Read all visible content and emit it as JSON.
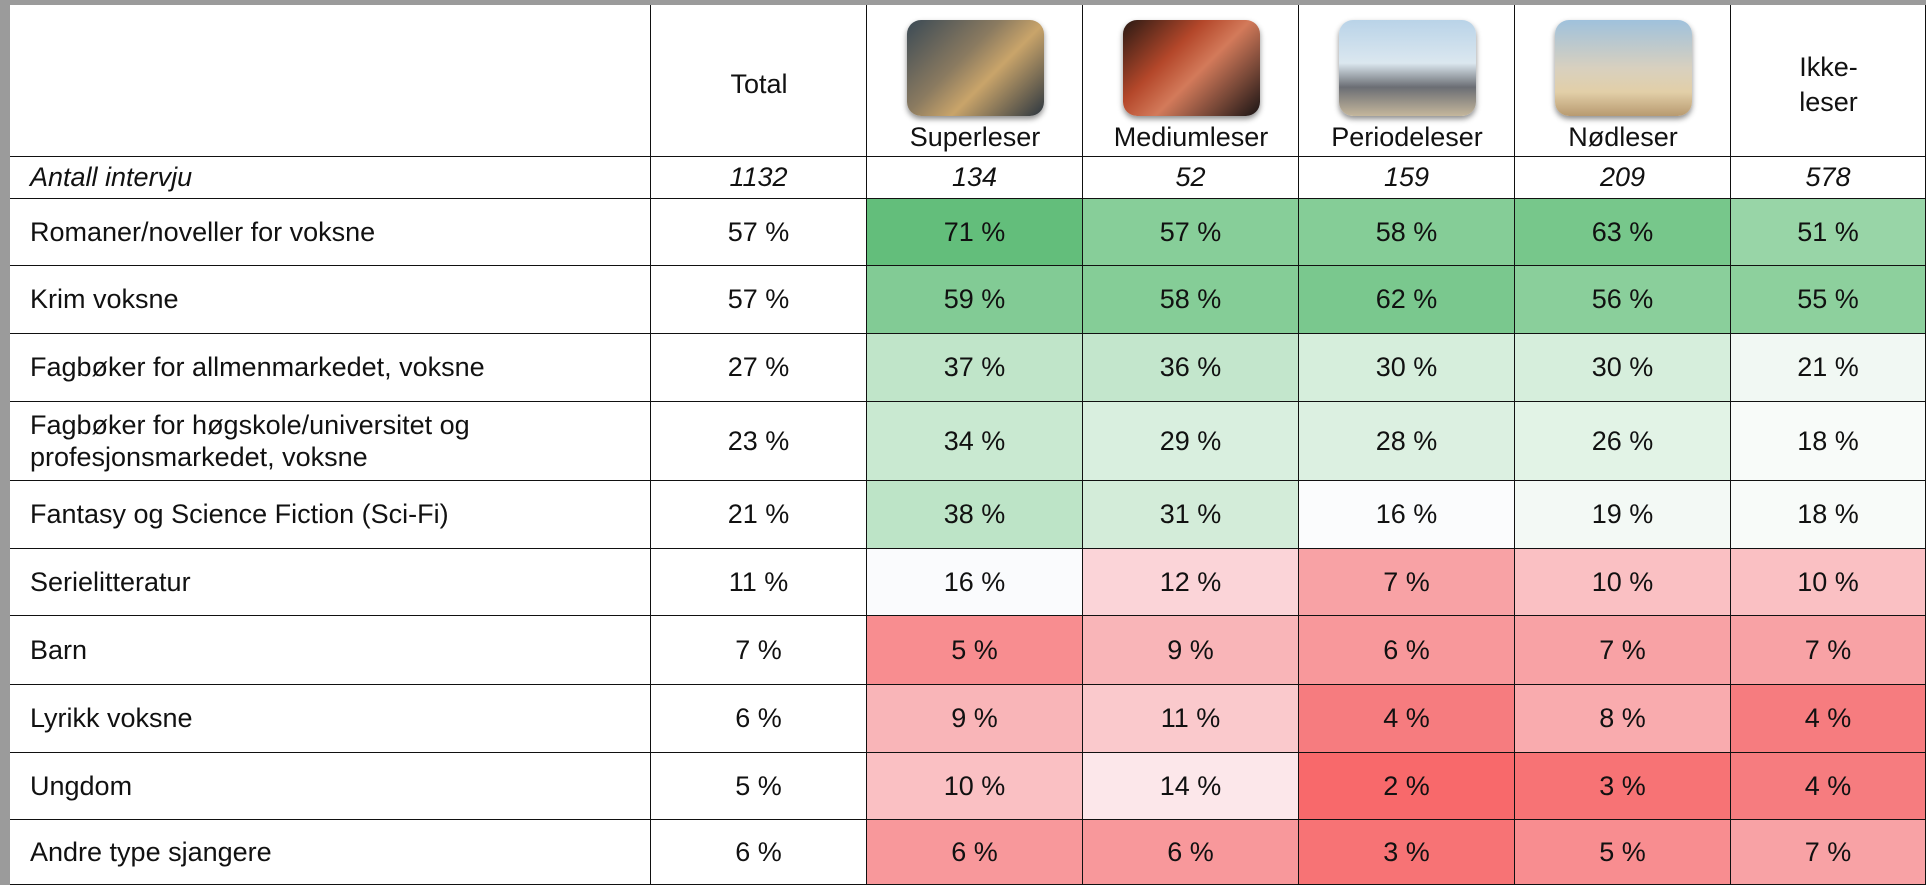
{
  "header": {
    "columns": [
      "Total",
      "Superleser",
      "Mediumleser",
      "Periodeleser",
      "Nødleser",
      "Ikke-\nleser"
    ]
  },
  "antall": {
    "label": "Antall intervju",
    "values": [
      1132,
      134,
      52,
      159,
      209,
      578
    ]
  },
  "rows": [
    {
      "label": "Romaner/noveller for voksne",
      "cells": [
        "57 %",
        "71 %",
        "57 %",
        "58 %",
        "63 %",
        "51 %"
      ],
      "colors": [
        "#ffffff",
        "#63be7b",
        "#87ce99",
        "#85cd97",
        "#77c78b",
        "#98d5a7"
      ]
    },
    {
      "label": "Krim voksne",
      "cells": [
        "57 %",
        "59 %",
        "58 %",
        "62 %",
        "56 %",
        "55 %"
      ],
      "colors": [
        "#ffffff",
        "#82cb95",
        "#85cd97",
        "#7ac88e",
        "#8acf9b",
        "#8dd09d"
      ]
    },
    {
      "label": "Fagbøker for allmenmarkedet, voksne",
      "cells": [
        "27 %",
        "37 %",
        "36 %",
        "30 %",
        "30 %",
        "21 %"
      ],
      "colors": [
        "#ffffff",
        "#c0e5c9",
        "#c3e6cc",
        "#d6eedc",
        "#d6eedc",
        "#f1f8f3"
      ]
    },
    {
      "label": "Fagbøker for høgskole/universitet og profesjonsmarkedet, voksne",
      "cells": [
        "23 %",
        "34 %",
        "29 %",
        "28 %",
        "26 %",
        "18 %"
      ],
      "colors": [
        "#ffffff",
        "#c9e9d1",
        "#d9efdf",
        "#dcf0e1",
        "#e2f3e6",
        "#f8fbf9"
      ]
    },
    {
      "label": "Fantasy og Science Fiction (Sci-Fi)",
      "cells": [
        "21 %",
        "38 %",
        "31 %",
        "16 %",
        "19 %",
        "18 %"
      ],
      "colors": [
        "#ffffff",
        "#bde4c7",
        "#d3ecd9",
        "#fbfcfd",
        "#f3f9f5",
        "#f8fbf9"
      ]
    },
    {
      "label": "Serielitteratur",
      "cells": [
        "11 %",
        "16 %",
        "12 %",
        "7 %",
        "10 %",
        "10 %"
      ],
      "colors": [
        "#ffffff",
        "#fafbfd",
        "#fbd4d8",
        "#f8a2a5",
        "#fac0c3",
        "#fac0c3"
      ]
    },
    {
      "label": "Barn",
      "cells": [
        "7 %",
        "5 %",
        "9 %",
        "6 %",
        "7 %",
        "7 %"
      ],
      "colors": [
        "#ffffff",
        "#f88d90",
        "#f9b5b8",
        "#f8989b",
        "#f8a2a5",
        "#f8a2a5"
      ]
    },
    {
      "label": "Lyrikk voksne",
      "cells": [
        "6 %",
        "9 %",
        "11 %",
        "4 %",
        "8 %",
        "4 %"
      ],
      "colors": [
        "#ffffff",
        "#f9b5b8",
        "#fac9cc",
        "#f67c7f",
        "#f9abae",
        "#f67c7f"
      ]
    },
    {
      "label": "Ungdom",
      "cells": [
        "5 %",
        "10 %",
        "14 %",
        "2 %",
        "3 %",
        "4 %"
      ],
      "colors": [
        "#ffffff",
        "#fac0c3",
        "#fce7ea",
        "#f8696b",
        "#f77375",
        "#f67c7f"
      ]
    },
    {
      "label": "Andre type sjangere",
      "cells": [
        "6 %",
        "6 %",
        "6 %",
        "3 %",
        "5 %",
        "7 %"
      ],
      "colors": [
        "#ffffff",
        "#f8989b",
        "#f8989b",
        "#f77375",
        "#f88d90",
        "#f8a2a5"
      ]
    }
  ]
}
